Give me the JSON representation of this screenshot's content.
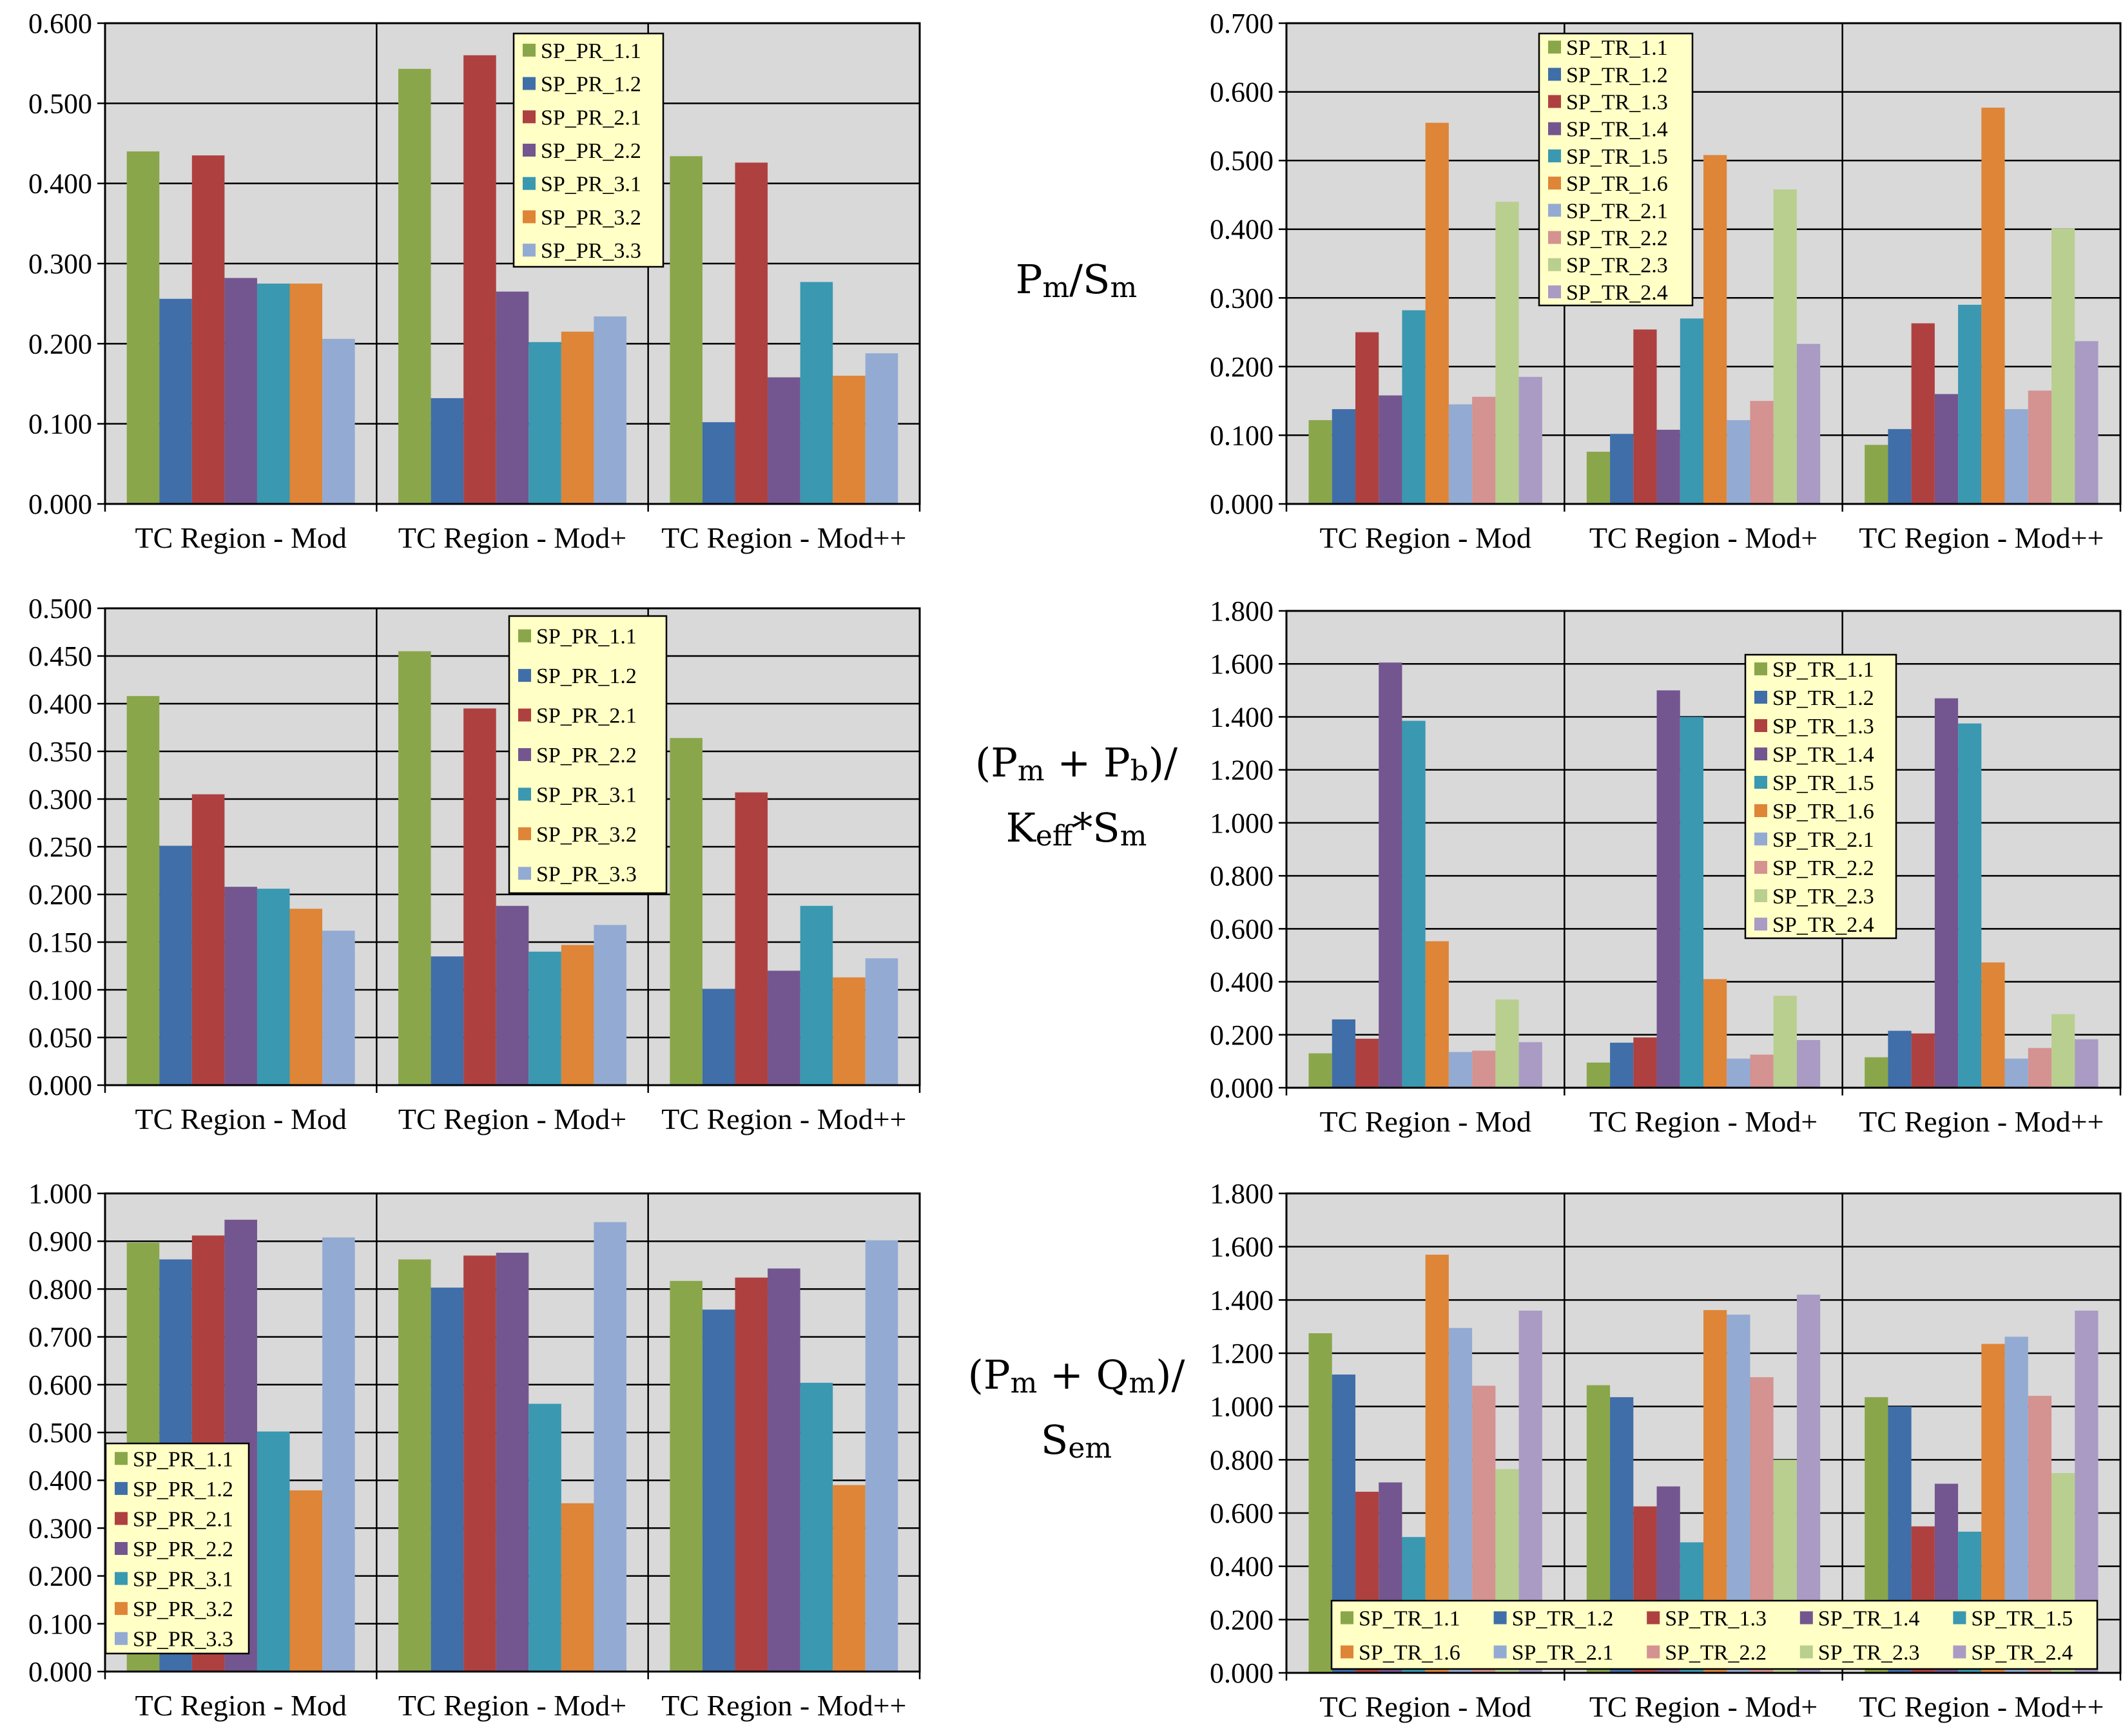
{
  "colors": {
    "SP_PR_1.1": "#8aa64b",
    "SP_PR_1.2": "#3f6ea9",
    "SP_PR_2.1": "#ae4140",
    "SP_PR_2.2": "#73568f",
    "SP_PR_3.1": "#3a98b1",
    "SP_PR_3.2": "#de8537",
    "SP_PR_3.3": "#93abd3",
    "SP_TR_1.1": "#8aa64b",
    "SP_TR_1.2": "#3f6ea9",
    "SP_TR_1.3": "#ae4140",
    "SP_TR_1.4": "#73568f",
    "SP_TR_1.5": "#3a98b1",
    "SP_TR_1.6": "#de8537",
    "SP_TR_2.1": "#93abd3",
    "SP_TR_2.2": "#d49290",
    "SP_TR_2.3": "#b9cf8f",
    "SP_TR_2.4": "#a99bc4",
    "plot_bg": "#d9d9d9",
    "legend_bg": "#ffffc6"
  },
  "row_labels": [
    {
      "main": "P",
      "sub1": "m",
      "mid": "/S",
      "sub2": "m"
    },
    {
      "line1_a": "(P",
      "line1_sub_a": "m",
      "line1_b": " + P",
      "line1_sub_b": "b",
      "line1_c": ")/",
      "line2_a": "K",
      "line2_sub_a": "eff",
      "line2_b": "*S",
      "line2_sub_b": "m"
    },
    {
      "line1_a": "(P",
      "line1_sub_a": "m",
      "line1_b": " + Q",
      "line1_sub_b": "m",
      "line1_c": ")/",
      "line2_a": "S",
      "line2_sub_a": "em"
    }
  ],
  "chart_data": [
    {
      "id": "pr-pm-sm",
      "type": "bar",
      "categories": [
        "TC Region - Mod",
        "TC Region - Mod+",
        "TC Region - Mod++"
      ],
      "ylim": [
        0,
        0.6
      ],
      "ystep": 0.1,
      "grid": true,
      "legend": "top-center-inside",
      "series": [
        {
          "name": "SP_PR_1.1",
          "values": [
            0.44,
            0.543,
            0.434
          ]
        },
        {
          "name": "SP_PR_1.2",
          "values": [
            0.256,
            0.132,
            0.102
          ]
        },
        {
          "name": "SP_PR_2.1",
          "values": [
            0.435,
            0.56,
            0.426
          ]
        },
        {
          "name": "SP_PR_2.2",
          "values": [
            0.282,
            0.265,
            0.158
          ]
        },
        {
          "name": "SP_PR_3.1",
          "values": [
            0.275,
            0.202,
            0.277
          ]
        },
        {
          "name": "SP_PR_3.2",
          "values": [
            0.275,
            0.215,
            0.16
          ]
        },
        {
          "name": "SP_PR_3.3",
          "values": [
            0.206,
            0.234,
            0.188
          ]
        }
      ]
    },
    {
      "id": "tr-pm-sm",
      "type": "bar",
      "categories": [
        "TC Region - Mod",
        "TC Region - Mod+",
        "TC Region - Mod++"
      ],
      "ylim": [
        0,
        0.7
      ],
      "ystep": 0.1,
      "grid": true,
      "legend": "top-left-inside",
      "series": [
        {
          "name": "SP_TR_1.1",
          "values": [
            0.122,
            0.076,
            0.086
          ]
        },
        {
          "name": "SP_TR_1.2",
          "values": [
            0.138,
            0.102,
            0.109
          ]
        },
        {
          "name": "SP_TR_1.3",
          "values": [
            0.25,
            0.254,
            0.263
          ]
        },
        {
          "name": "SP_TR_1.4",
          "values": [
            0.158,
            0.108,
            0.16
          ]
        },
        {
          "name": "SP_TR_1.5",
          "values": [
            0.282,
            0.27,
            0.29
          ]
        },
        {
          "name": "SP_TR_1.6",
          "values": [
            0.555,
            0.508,
            0.577
          ]
        },
        {
          "name": "SP_TR_2.1",
          "values": [
            0.145,
            0.122,
            0.138
          ]
        },
        {
          "name": "SP_TR_2.2",
          "values": [
            0.156,
            0.15,
            0.165
          ]
        },
        {
          "name": "SP_TR_2.3",
          "values": [
            0.44,
            0.458,
            0.401
          ]
        },
        {
          "name": "SP_TR_2.4",
          "values": [
            0.185,
            0.233,
            0.237
          ]
        }
      ]
    },
    {
      "id": "pr-pmpb",
      "type": "bar",
      "categories": [
        "TC Region - Mod",
        "TC Region - Mod+",
        "TC Region - Mod++"
      ],
      "ylim": [
        0,
        0.5
      ],
      "ystep": 0.05,
      "grid": true,
      "legend": "top-center-inside",
      "series": [
        {
          "name": "SP_PR_1.1",
          "values": [
            0.408,
            0.455,
            0.364
          ]
        },
        {
          "name": "SP_PR_1.2",
          "values": [
            0.251,
            0.135,
            0.101
          ]
        },
        {
          "name": "SP_PR_2.1",
          "values": [
            0.305,
            0.395,
            0.307
          ]
        },
        {
          "name": "SP_PR_2.2",
          "values": [
            0.208,
            0.188,
            0.12
          ]
        },
        {
          "name": "SP_PR_3.1",
          "values": [
            0.206,
            0.14,
            0.188
          ]
        },
        {
          "name": "SP_PR_3.2",
          "values": [
            0.185,
            0.147,
            0.113
          ]
        },
        {
          "name": "SP_PR_3.3",
          "values": [
            0.162,
            0.168,
            0.133
          ]
        }
      ]
    },
    {
      "id": "tr-pmpb",
      "type": "bar",
      "categories": [
        "TC Region - Mod",
        "TC Region - Mod+",
        "TC Region - Mod++"
      ],
      "ylim": [
        0,
        1.8
      ],
      "ystep": 0.2,
      "grid": true,
      "legend": "top-center-inside",
      "series": [
        {
          "name": "SP_TR_1.1",
          "values": [
            0.13,
            0.095,
            0.115
          ]
        },
        {
          "name": "SP_TR_1.2",
          "values": [
            0.258,
            0.17,
            0.215
          ]
        },
        {
          "name": "SP_TR_1.3",
          "values": [
            0.185,
            0.19,
            0.205
          ]
        },
        {
          "name": "SP_TR_1.4",
          "values": [
            1.605,
            1.5,
            1.47
          ]
        },
        {
          "name": "SP_TR_1.5",
          "values": [
            1.385,
            1.4,
            1.375
          ]
        },
        {
          "name": "SP_TR_1.6",
          "values": [
            0.553,
            0.41,
            0.473
          ]
        },
        {
          "name": "SP_TR_2.1",
          "values": [
            0.135,
            0.11,
            0.11
          ]
        },
        {
          "name": "SP_TR_2.2",
          "values": [
            0.14,
            0.125,
            0.15
          ]
        },
        {
          "name": "SP_TR_2.3",
          "values": [
            0.333,
            0.347,
            0.278
          ]
        },
        {
          "name": "SP_TR_2.4",
          "values": [
            0.172,
            0.18,
            0.183
          ]
        }
      ]
    },
    {
      "id": "pr-pmqm",
      "type": "bar",
      "categories": [
        "TC Region - Mod",
        "TC Region - Mod+",
        "TC Region - Mod++"
      ],
      "ylim": [
        0,
        1.0
      ],
      "ystep": 0.1,
      "grid": true,
      "legend": "bottom-left-inside",
      "series": [
        {
          "name": "SP_PR_1.1",
          "values": [
            0.897,
            0.862,
            0.817
          ]
        },
        {
          "name": "SP_PR_1.2",
          "values": [
            0.862,
            0.803,
            0.757
          ]
        },
        {
          "name": "SP_PR_2.1",
          "values": [
            0.912,
            0.87,
            0.824
          ]
        },
        {
          "name": "SP_PR_2.2",
          "values": [
            0.945,
            0.876,
            0.843
          ]
        },
        {
          "name": "SP_PR_3.1",
          "values": [
            0.502,
            0.56,
            0.604
          ]
        },
        {
          "name": "SP_PR_3.2",
          "values": [
            0.379,
            0.352,
            0.39
          ]
        },
        {
          "name": "SP_PR_3.3",
          "values": [
            0.908,
            0.94,
            0.902
          ]
        }
      ]
    },
    {
      "id": "tr-pmqm",
      "type": "bar",
      "categories": [
        "TC Region - Mod",
        "TC Region - Mod+",
        "TC Region - Mod++"
      ],
      "ylim": [
        0,
        1.8
      ],
      "ystep": 0.2,
      "grid": true,
      "legend": "bottom-inside-5col",
      "series": [
        {
          "name": "SP_TR_1.1",
          "values": [
            1.275,
            1.08,
            1.035
          ]
        },
        {
          "name": "SP_TR_1.2",
          "values": [
            1.12,
            1.035,
            1.0
          ]
        },
        {
          "name": "SP_TR_1.3",
          "values": [
            0.68,
            0.625,
            0.55
          ]
        },
        {
          "name": "SP_TR_1.4",
          "values": [
            0.715,
            0.7,
            0.71
          ]
        },
        {
          "name": "SP_TR_1.5",
          "values": [
            0.51,
            0.49,
            0.53
          ]
        },
        {
          "name": "SP_TR_1.6",
          "values": [
            1.57,
            1.362,
            1.235
          ]
        },
        {
          "name": "SP_TR_2.1",
          "values": [
            1.295,
            1.345,
            1.262
          ]
        },
        {
          "name": "SP_TR_2.2",
          "values": [
            1.078,
            1.11,
            1.04
          ]
        },
        {
          "name": "SP_TR_2.3",
          "values": [
            0.765,
            0.8,
            0.75
          ]
        },
        {
          "name": "SP_TR_2.4",
          "values": [
            1.36,
            1.42,
            1.36
          ]
        }
      ]
    }
  ]
}
